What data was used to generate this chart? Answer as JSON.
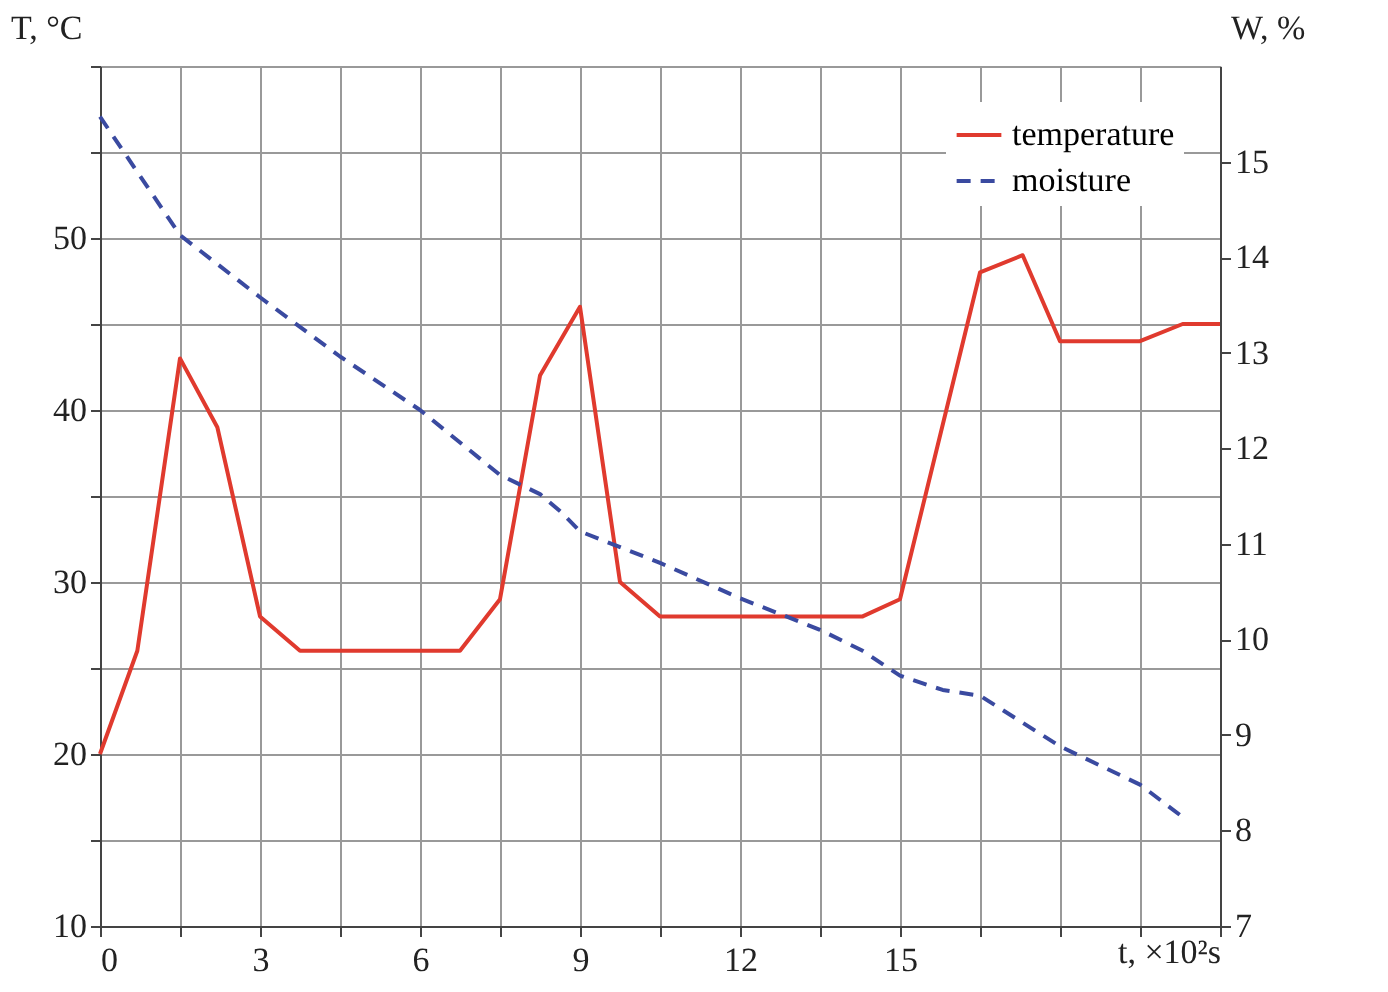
{
  "chart_data": {
    "type": "line",
    "xlabel": "t, ×10²s",
    "ylabel": "T, °C",
    "y2label": "W, %",
    "xlim": [
      0,
      21
    ],
    "ylim": [
      10,
      60
    ],
    "y2lim": [
      7,
      16
    ],
    "xticks": [
      0,
      {
        "value": 1.5,
        "label": null
      },
      3,
      {
        "value": 4.5,
        "label": null
      },
      6,
      {
        "value": 7.5,
        "label": null
      },
      9,
      {
        "value": 10.5,
        "label": null
      },
      12,
      {
        "value": 13.5,
        "label": null
      },
      15,
      {
        "value": 16.5,
        "label": null
      },
      {
        "value": 18,
        "label": null
      },
      {
        "value": 19.5,
        "label": null
      },
      {
        "value": 21,
        "label": null
      }
    ],
    "yticks": [
      10,
      {
        "value": 15,
        "label": null
      },
      20,
      {
        "value": 25,
        "label": null
      },
      30,
      {
        "value": 35,
        "label": null
      },
      40,
      {
        "value": 45,
        "label": null
      },
      50,
      {
        "value": 55,
        "label": null
      },
      {
        "value": 60,
        "label": null
      }
    ],
    "y2ticks": [
      7,
      8,
      9,
      10,
      11,
      12,
      13,
      14,
      15
    ],
    "grid": true,
    "legend": "top right",
    "series": [
      {
        "name": "temperature",
        "color": "#e03a2e",
        "line_style": "solid",
        "x": [
          0,
          0.7,
          1.5,
          2.2,
          3,
          3.75,
          6.75,
          7.5,
          8.25,
          9,
          9.75,
          10.5,
          14.3,
          15,
          16.5,
          17.3,
          18,
          19.5,
          20.3,
          21
        ],
        "values": [
          20,
          26,
          43,
          39,
          28,
          26,
          26,
          29,
          42,
          46,
          30,
          28,
          28,
          29,
          48,
          49,
          44,
          44,
          45,
          45
        ]
      },
      {
        "name": "moisture",
        "color": "#3a4aa0",
        "line_style": "dashed",
        "axis": "y2",
        "x": [
          0,
          1.5,
          3,
          4.5,
          6,
          7.5,
          8.25,
          8.65,
          9,
          10.5,
          12,
          13.5,
          14.3,
          15,
          15.8,
          16.5,
          18,
          19.5,
          20.3
        ],
        "values": [
          15.47,
          14.23,
          13.58,
          12.96,
          12.4,
          11.72,
          11.52,
          11.33,
          11.13,
          10.8,
          10.43,
          10.1,
          9.88,
          9.62,
          9.47,
          9.41,
          8.88,
          8.48,
          8.14
        ]
      }
    ]
  }
}
